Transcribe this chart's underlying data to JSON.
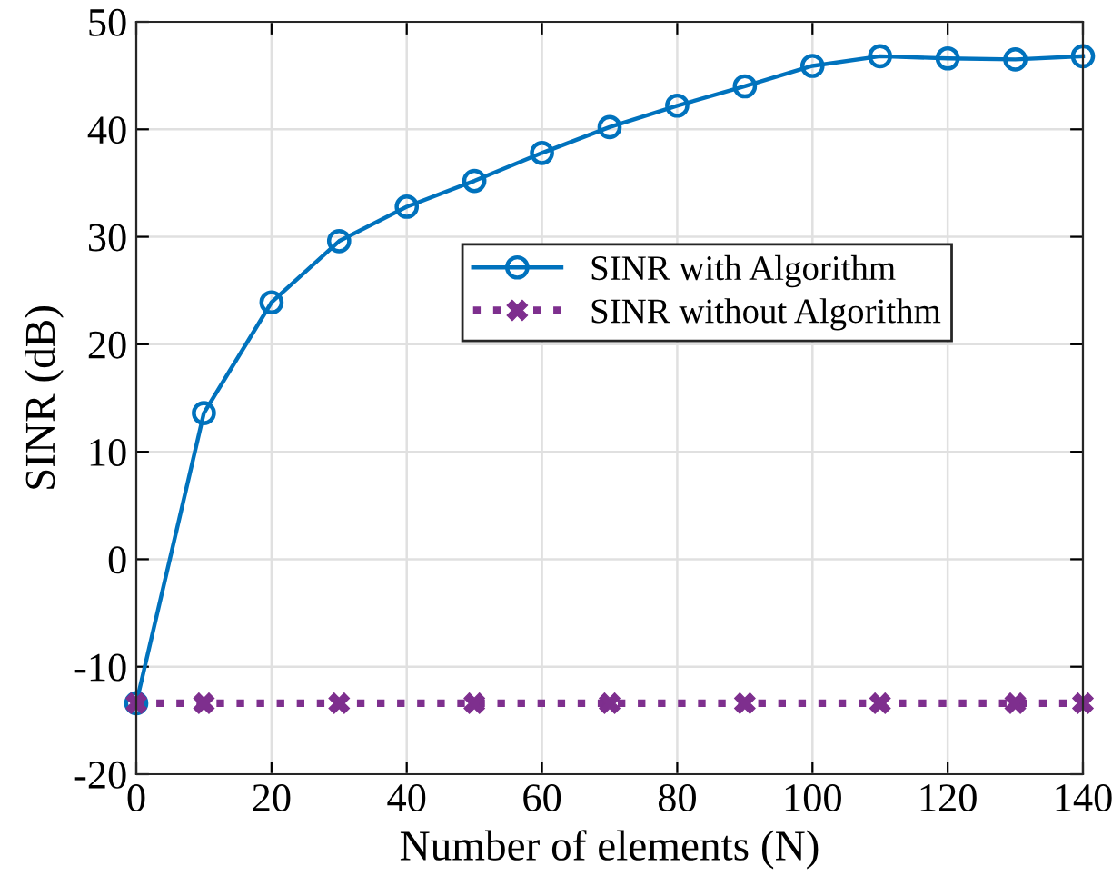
{
  "chart_data": {
    "type": "line",
    "xlabel": "Number of elements (N)",
    "ylabel": "SINR (dB)",
    "xlim": [
      0,
      140
    ],
    "xticks": [
      0,
      20,
      40,
      60,
      80,
      100,
      120,
      140
    ],
    "ylim": [
      -20,
      50
    ],
    "yticks": [
      -20,
      -10,
      0,
      10,
      20,
      30,
      40,
      50
    ],
    "grid": true,
    "legend": "right",
    "series": [
      {
        "name": "SINR with Algorithm",
        "color": "#0072bd",
        "marker": "circle",
        "line_style": "solid",
        "x": [
          0,
          10,
          20,
          30,
          40,
          50,
          60,
          70,
          80,
          90,
          100,
          110,
          120,
          130,
          140
        ],
        "values": [
          -13.4,
          13.6,
          23.9,
          29.6,
          32.8,
          35.2,
          37.8,
          40.2,
          42.2,
          44.0,
          45.9,
          46.8,
          46.6,
          46.5,
          46.8
        ]
      },
      {
        "name": "SINR without Algorithm",
        "color": "#7e2f8e",
        "marker": "cross",
        "line_style": "dotted",
        "x": [
          0,
          10,
          30,
          50,
          70,
          90,
          110,
          130,
          140
        ],
        "values": [
          -13.4,
          -13.4,
          -13.4,
          -13.4,
          -13.4,
          -13.4,
          -13.4,
          -13.4,
          -13.4
        ]
      }
    ]
  }
}
